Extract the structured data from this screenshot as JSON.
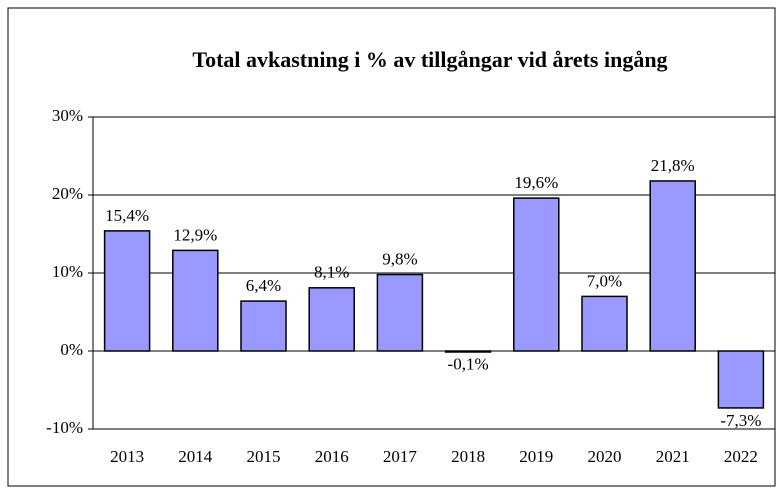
{
  "chart_data": {
    "type": "bar",
    "title": "Total avkastning i % av tillgångar vid årets ingång",
    "categories": [
      "2013",
      "2014",
      "2015",
      "2016",
      "2017",
      "2018",
      "2019",
      "2020",
      "2021",
      "2022"
    ],
    "values": [
      15.4,
      12.9,
      6.4,
      8.1,
      9.8,
      -0.1,
      19.6,
      7.0,
      21.8,
      -7.3
    ],
    "value_labels": [
      "15,4%",
      "12,9%",
      "6,4%",
      "8,1%",
      "9,8%",
      "-0,1%",
      "19,6%",
      "7,0%",
      "21,8%",
      "-7,3%"
    ],
    "color": "#9999ff",
    "ylim": [
      -10,
      30
    ],
    "yticks": [
      {
        "value": -10,
        "label": "-10%"
      },
      {
        "value": 0,
        "label": "0%"
      },
      {
        "value": 10,
        "label": "10%"
      },
      {
        "value": 20,
        "label": "20%"
      },
      {
        "value": 30,
        "label": "30%"
      }
    ],
    "grid": true
  }
}
